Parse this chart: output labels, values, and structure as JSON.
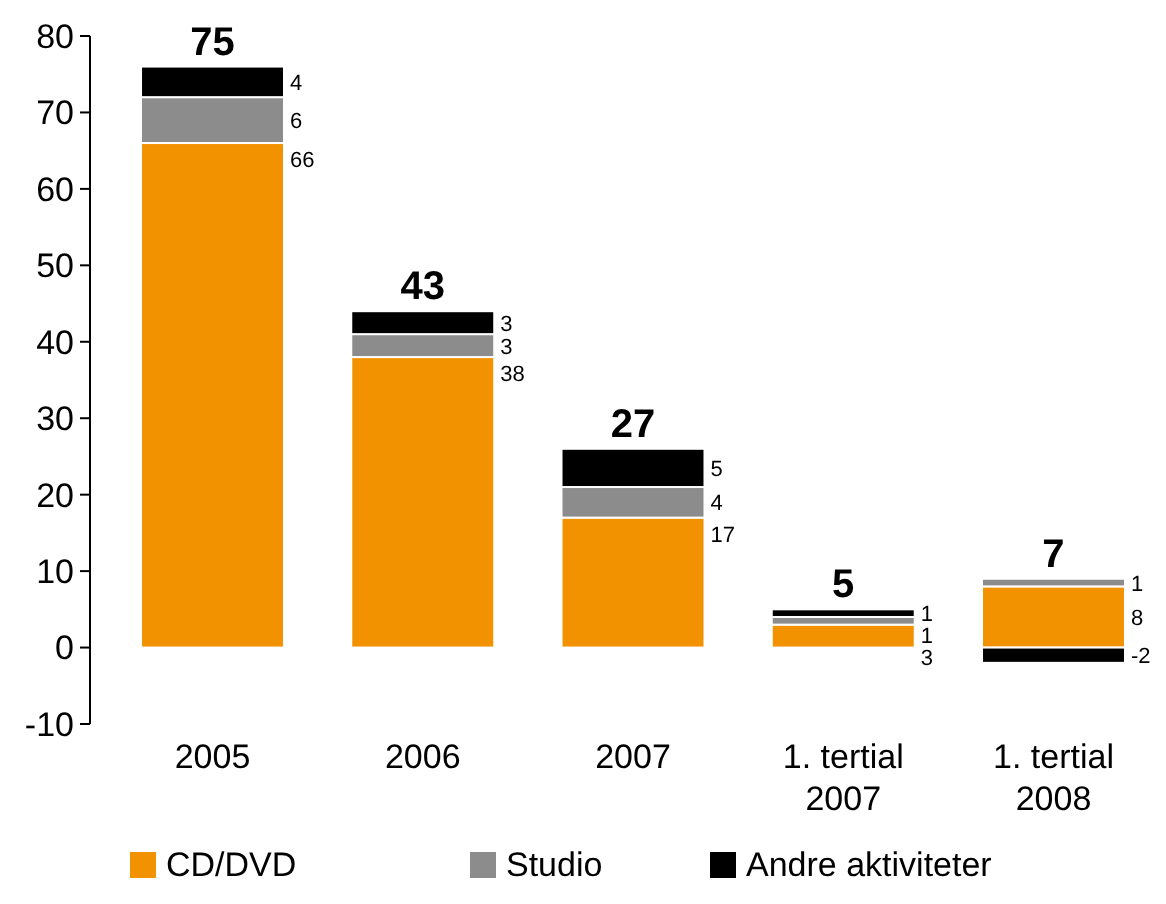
{
  "chart_data": {
    "type": "bar",
    "stacked": true,
    "categories": [
      "2005",
      "2006",
      "2007",
      "1. tertial 2007",
      "1. tertial 2008"
    ],
    "series": [
      {
        "name": "CD/DVD",
        "color": "#f39200",
        "values": [
          66,
          38,
          17,
          3,
          8
        ]
      },
      {
        "name": "Studio",
        "color": "#8c8c8c",
        "values": [
          6,
          3,
          4,
          1,
          1
        ]
      },
      {
        "name": "Andre aktiviteter",
        "color": "#000000",
        "values": [
          4,
          3,
          5,
          1,
          -2
        ]
      }
    ],
    "totals": [
      "75",
      "43",
      "27",
      "5",
      "7"
    ],
    "ylim": [
      -10,
      80
    ],
    "yticks": [
      -10,
      0,
      10,
      20,
      30,
      40,
      50,
      60,
      70,
      80
    ],
    "data_labels": true,
    "legend": "bottom",
    "grid": false
  }
}
